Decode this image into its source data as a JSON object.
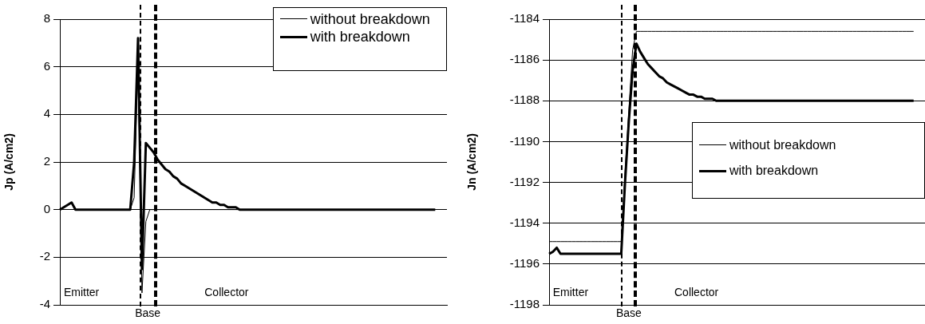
{
  "chart_data": [
    {
      "type": "line",
      "ylabel": "Jp (A/cm2)",
      "ylim": [
        -4,
        8
      ],
      "yticks": [
        -4,
        -2,
        0,
        2,
        4,
        6,
        8
      ],
      "grid": "y",
      "tick_labels": "y",
      "legend": "top right",
      "annotations": [
        "Emitter",
        "Base",
        "Collector"
      ],
      "categories": [
        null,
        null,
        null,
        null,
        null,
        null,
        null,
        null,
        null,
        null,
        null,
        null,
        null,
        null,
        null,
        null,
        null,
        null,
        null,
        null,
        null,
        null,
        null,
        null,
        null,
        null,
        null,
        null,
        null,
        null,
        null,
        null,
        null,
        null,
        null,
        null,
        null,
        null,
        null,
        null,
        null,
        null,
        null,
        null,
        null,
        null,
        null,
        null,
        null,
        null,
        null,
        null,
        null,
        null,
        null,
        null,
        null,
        null,
        null,
        null,
        null,
        null,
        null,
        null,
        null,
        null,
        null,
        null,
        null,
        null,
        null,
        null,
        null,
        null,
        null,
        null,
        null,
        null,
        null,
        null,
        null,
        null,
        null,
        null,
        null,
        null,
        null,
        null,
        null,
        null,
        null,
        null,
        null,
        null,
        null,
        null,
        null,
        null,
        null,
        null
      ],
      "series": [
        {
          "name": "without breakdown",
          "color": "#000000",
          "values": [
            0,
            0.1,
            0.2,
            0.3,
            0,
            0,
            0,
            0,
            0,
            0,
            0,
            0,
            0,
            0,
            0,
            0,
            0,
            0,
            0,
            0.5,
            6.3,
            -3.5,
            -0.5,
            0,
            0,
            0,
            0,
            0,
            0,
            0,
            0,
            0,
            0,
            0,
            0,
            0,
            0,
            0,
            0,
            0,
            0,
            0,
            0,
            0,
            0,
            0,
            0,
            0,
            0,
            0,
            0,
            0,
            0,
            0,
            0,
            0,
            0,
            0,
            0,
            0,
            0,
            0,
            0,
            0,
            0,
            0,
            0,
            0,
            0,
            0,
            0,
            0,
            0,
            0,
            0,
            0,
            0,
            0,
            0,
            0,
            0,
            0,
            0,
            0,
            0,
            0,
            0,
            0,
            0,
            0,
            0,
            0,
            0,
            0,
            0,
            0,
            0,
            null,
            null,
            null
          ]
        },
        {
          "name": "with breakdown",
          "color": "#000000",
          "values": [
            0,
            0.1,
            0.2,
            0.3,
            0,
            0,
            0,
            0,
            0,
            0,
            0,
            0,
            0,
            0,
            0,
            0,
            0,
            0,
            0,
            2,
            7.2,
            -2.5,
            2.8,
            2.6,
            2.4,
            2.1,
            1.9,
            1.7,
            1.6,
            1.4,
            1.3,
            1.1,
            1,
            0.9,
            0.8,
            0.7,
            0.6,
            0.5,
            0.4,
            0.3,
            0.3,
            0.2,
            0.2,
            0.1,
            0.1,
            0.1,
            0,
            0,
            0,
            0,
            0,
            0,
            0,
            0,
            0,
            0,
            0,
            0,
            0,
            0,
            0,
            0,
            0,
            0,
            0,
            0,
            0,
            0,
            0,
            0,
            0,
            0,
            0,
            0,
            0,
            0,
            0,
            0,
            0,
            0,
            0,
            0,
            0,
            0,
            0,
            0,
            0,
            0,
            0,
            0,
            0,
            0,
            0,
            0,
            0,
            0,
            0,
            null,
            null,
            null
          ]
        }
      ]
    },
    {
      "type": "line",
      "ylabel": "Jn (A/cm2)",
      "ylim": [
        -1198,
        -1184
      ],
      "yticks": [
        -1198,
        -1196,
        -1194,
        -1192,
        -1190,
        -1188,
        -1186,
        -1184
      ],
      "grid": "y",
      "tick_labels": "y",
      "legend": "right",
      "annotations": [
        "Emitter",
        "Base",
        "Collector"
      ],
      "categories": [
        null,
        null,
        null,
        null,
        null,
        null,
        null,
        null,
        null,
        null,
        null,
        null,
        null,
        null,
        null,
        null,
        null,
        null,
        null,
        null,
        null,
        null,
        null,
        null,
        null,
        null,
        null,
        null,
        null,
        null,
        null,
        null,
        null,
        null,
        null,
        null,
        null,
        null,
        null,
        null,
        null,
        null,
        null,
        null,
        null,
        null,
        null,
        null,
        null,
        null,
        null,
        null,
        null,
        null,
        null,
        null,
        null,
        null,
        null,
        null,
        null,
        null,
        null,
        null,
        null,
        null,
        null,
        null,
        null,
        null,
        null,
        null,
        null,
        null,
        null,
        null,
        null,
        null,
        null,
        null,
        null,
        null,
        null,
        null,
        null,
        null,
        null,
        null,
        null,
        null,
        null,
        null,
        null,
        null,
        null,
        null,
        null,
        null,
        null,
        null
      ],
      "series": [
        {
          "name": "without breakdown",
          "color": "#000000",
          "values": [
            -1194.9,
            -1194.9,
            -1194.9,
            -1194.9,
            -1194.9,
            -1194.9,
            -1194.9,
            -1194.9,
            -1194.9,
            -1194.9,
            -1194.9,
            -1194.9,
            -1194.9,
            -1194.9,
            -1194.9,
            -1194.9,
            -1194.9,
            -1194.9,
            -1194.9,
            -1194.9,
            -1191.5,
            -1188.5,
            -1185.5,
            -1184.6,
            -1184.6,
            -1184.6,
            -1184.6,
            -1184.6,
            -1184.6,
            -1184.6,
            -1184.6,
            -1184.6,
            -1184.6,
            -1184.6,
            -1184.6,
            -1184.6,
            -1184.6,
            -1184.6,
            -1184.6,
            -1184.6,
            -1184.6,
            -1184.6,
            -1184.6,
            -1184.6,
            -1184.6,
            -1184.6,
            -1184.6,
            -1184.6,
            -1184.6,
            -1184.6,
            -1184.6,
            -1184.6,
            -1184.6,
            -1184.6,
            -1184.6,
            -1184.6,
            -1184.6,
            -1184.6,
            -1184.6,
            -1184.6,
            -1184.6,
            -1184.6,
            -1184.6,
            -1184.6,
            -1184.6,
            -1184.6,
            -1184.6,
            -1184.6,
            -1184.6,
            -1184.6,
            -1184.6,
            -1184.6,
            -1184.6,
            -1184.6,
            -1184.6,
            -1184.6,
            -1184.6,
            -1184.6,
            -1184.6,
            -1184.6,
            -1184.6,
            -1184.6,
            -1184.6,
            -1184.6,
            -1184.6,
            -1184.6,
            -1184.6,
            -1184.6,
            -1184.6,
            -1184.6,
            -1184.6,
            -1184.6,
            -1184.6,
            -1184.6,
            -1184.6,
            -1184.6,
            -1184.6,
            null,
            null,
            null
          ]
        },
        {
          "name": "with breakdown",
          "color": "#000000",
          "values": [
            -1195.5,
            -1195.4,
            -1195.2,
            -1195.5,
            -1195.5,
            -1195.5,
            -1195.5,
            -1195.5,
            -1195.5,
            -1195.5,
            -1195.5,
            -1195.5,
            -1195.5,
            -1195.5,
            -1195.5,
            -1195.5,
            -1195.5,
            -1195.5,
            -1195.5,
            -1195.5,
            -1192,
            -1189,
            -1186.5,
            -1185.2,
            -1185.6,
            -1185.9,
            -1186.2,
            -1186.4,
            -1186.6,
            -1186.8,
            -1186.9,
            -1187.1,
            -1187.2,
            -1187.3,
            -1187.4,
            -1187.5,
            -1187.6,
            -1187.7,
            -1187.7,
            -1187.8,
            -1187.8,
            -1187.9,
            -1187.9,
            -1187.9,
            -1188,
            -1188,
            -1188,
            -1188,
            -1188,
            -1188,
            -1188,
            -1188,
            -1188,
            -1188,
            -1188,
            -1188,
            -1188,
            -1188,
            -1188,
            -1188,
            -1188,
            -1188,
            -1188,
            -1188,
            -1188,
            -1188,
            -1188,
            -1188,
            -1188,
            -1188,
            -1188,
            -1188,
            -1188,
            -1188,
            -1188,
            -1188,
            -1188,
            -1188,
            -1188,
            -1188,
            -1188,
            -1188,
            -1188,
            -1188,
            -1188,
            -1188,
            -1188,
            -1188,
            -1188,
            -1188,
            -1188,
            -1188,
            -1188,
            -1188,
            -1188,
            -1188,
            -1188,
            null,
            null,
            null
          ]
        }
      ]
    }
  ]
}
